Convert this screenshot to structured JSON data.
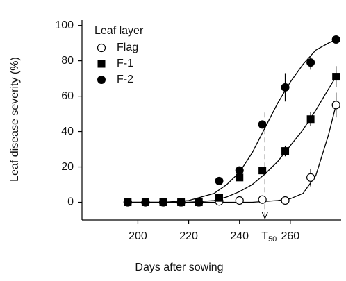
{
  "chart_data": {
    "type": "scatter",
    "x_label": "Days after sowing",
    "y_label": "Leaf disease severity (%)",
    "legend_title": "Leaf layer",
    "legend": "upper left",
    "x": [
      196,
      203,
      210,
      217,
      224,
      232,
      240,
      249,
      258,
      268,
      278
    ],
    "series": [
      {
        "name": "Flag",
        "marker": "open-circle",
        "color": "#000000",
        "values": [
          0,
          0,
          0,
          0,
          0,
          0.5,
          1,
          1.5,
          1,
          14,
          55
        ],
        "errors": [
          null,
          null,
          null,
          null,
          null,
          null,
          null,
          null,
          null,
          5,
          7
        ],
        "curve": [
          0,
          0,
          0,
          0,
          0,
          0,
          0,
          0.5,
          1,
          2,
          5,
          15,
          38,
          55
        ]
      },
      {
        "name": "F-1",
        "marker": "square",
        "color": "#000000",
        "values": [
          0,
          0,
          0,
          0,
          0,
          2.5,
          14,
          18,
          29,
          47,
          71
        ],
        "errors": [
          null,
          null,
          null,
          null,
          null,
          null,
          null,
          null,
          3,
          4,
          6
        ],
        "curve": [
          0,
          0,
          0,
          1,
          3,
          6,
          10,
          16,
          23,
          32,
          41,
          52,
          64,
          71
        ]
      },
      {
        "name": "F-2",
        "marker": "circle",
        "color": "#000000",
        "values": [
          0,
          0,
          0,
          0,
          0,
          12,
          18,
          44,
          65,
          79,
          92
        ],
        "errors": [
          null,
          null,
          null,
          null,
          null,
          null,
          null,
          null,
          8,
          4,
          2
        ],
        "curve": [
          0,
          0,
          1,
          5,
          10,
          17,
          28,
          42,
          56,
          68,
          78,
          86,
          90,
          92
        ]
      }
    ],
    "curve_x": [
      196,
      210,
      220,
      230,
      235,
      240,
      245,
      250,
      255,
      260,
      265,
      270,
      275,
      278
    ],
    "annotation": {
      "text": "T",
      "subscript": "50",
      "x": 250,
      "y": 51
    },
    "xlim": [
      178,
      280
    ],
    "ylim": [
      -10,
      103
    ],
    "xticks": [
      200,
      220,
      240,
      260
    ],
    "yticks": [
      0,
      20,
      40,
      60,
      80,
      100
    ]
  }
}
